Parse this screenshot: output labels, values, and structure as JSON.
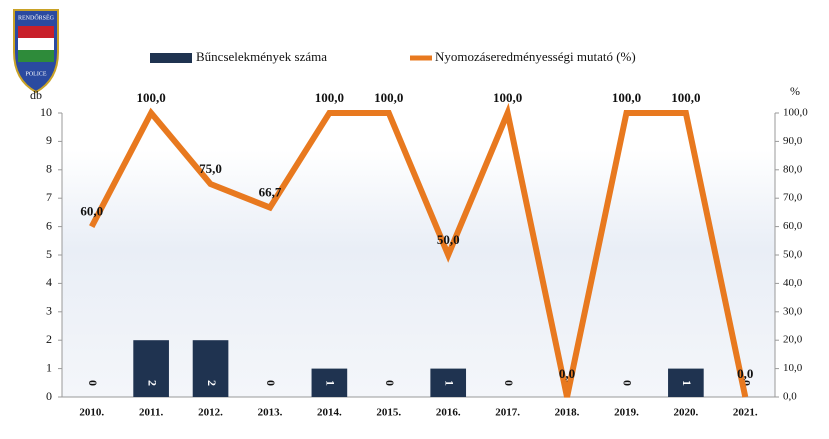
{
  "logo": {
    "top": "RENDŐRSÉG",
    "bottom": "POLICE"
  },
  "chart_data": {
    "type": "bar_line",
    "y_label": "db",
    "y2_label": "%",
    "categories": [
      "2010.",
      "2011.",
      "2012.",
      "2013.",
      "2014.",
      "2015.",
      "2016.",
      "2017.",
      "2018.",
      "2019.",
      "2020.",
      "2021."
    ],
    "series": [
      {
        "name": "Bűncselekmények száma",
        "color": "#1f3350",
        "kind": "bar",
        "values": [
          0,
          2,
          2,
          0,
          1,
          0,
          1,
          0,
          0,
          0,
          1,
          0
        ]
      },
      {
        "name": "Nyomozáseredményességi mutató (%)",
        "color": "#e8791f",
        "kind": "line",
        "axis": "y2",
        "values": [
          60,
          100,
          75,
          66.7,
          100,
          100,
          50,
          100,
          0,
          100,
          100,
          0
        ],
        "value_labels": [
          "60,0",
          "100,0",
          "75,0",
          "66,7",
          "100,0",
          "100,0",
          "50,0",
          "100,0",
          "0,0",
          "100,0",
          "100,0",
          "0,0"
        ]
      }
    ],
    "ylim": [
      0,
      10
    ],
    "yticks": [
      0,
      1,
      2,
      3,
      4,
      5,
      6,
      7,
      8,
      9,
      10
    ],
    "y2lim": [
      0,
      100
    ],
    "y2ticks": [
      {
        "value": 0,
        "label": "0,0"
      },
      {
        "value": 10,
        "label": "10,0"
      },
      {
        "value": 20,
        "label": "20,0"
      },
      {
        "value": 30,
        "label": "30,0"
      },
      {
        "value": 40,
        "label": "40,0"
      },
      {
        "value": 50,
        "label": "50,0"
      },
      {
        "value": 60,
        "label": "60,0"
      },
      {
        "value": 70,
        "label": "70,0"
      },
      {
        "value": 80,
        "label": "80,0"
      },
      {
        "value": 90,
        "label": "90,0"
      },
      {
        "value": 100,
        "label": "100,0"
      }
    ]
  }
}
